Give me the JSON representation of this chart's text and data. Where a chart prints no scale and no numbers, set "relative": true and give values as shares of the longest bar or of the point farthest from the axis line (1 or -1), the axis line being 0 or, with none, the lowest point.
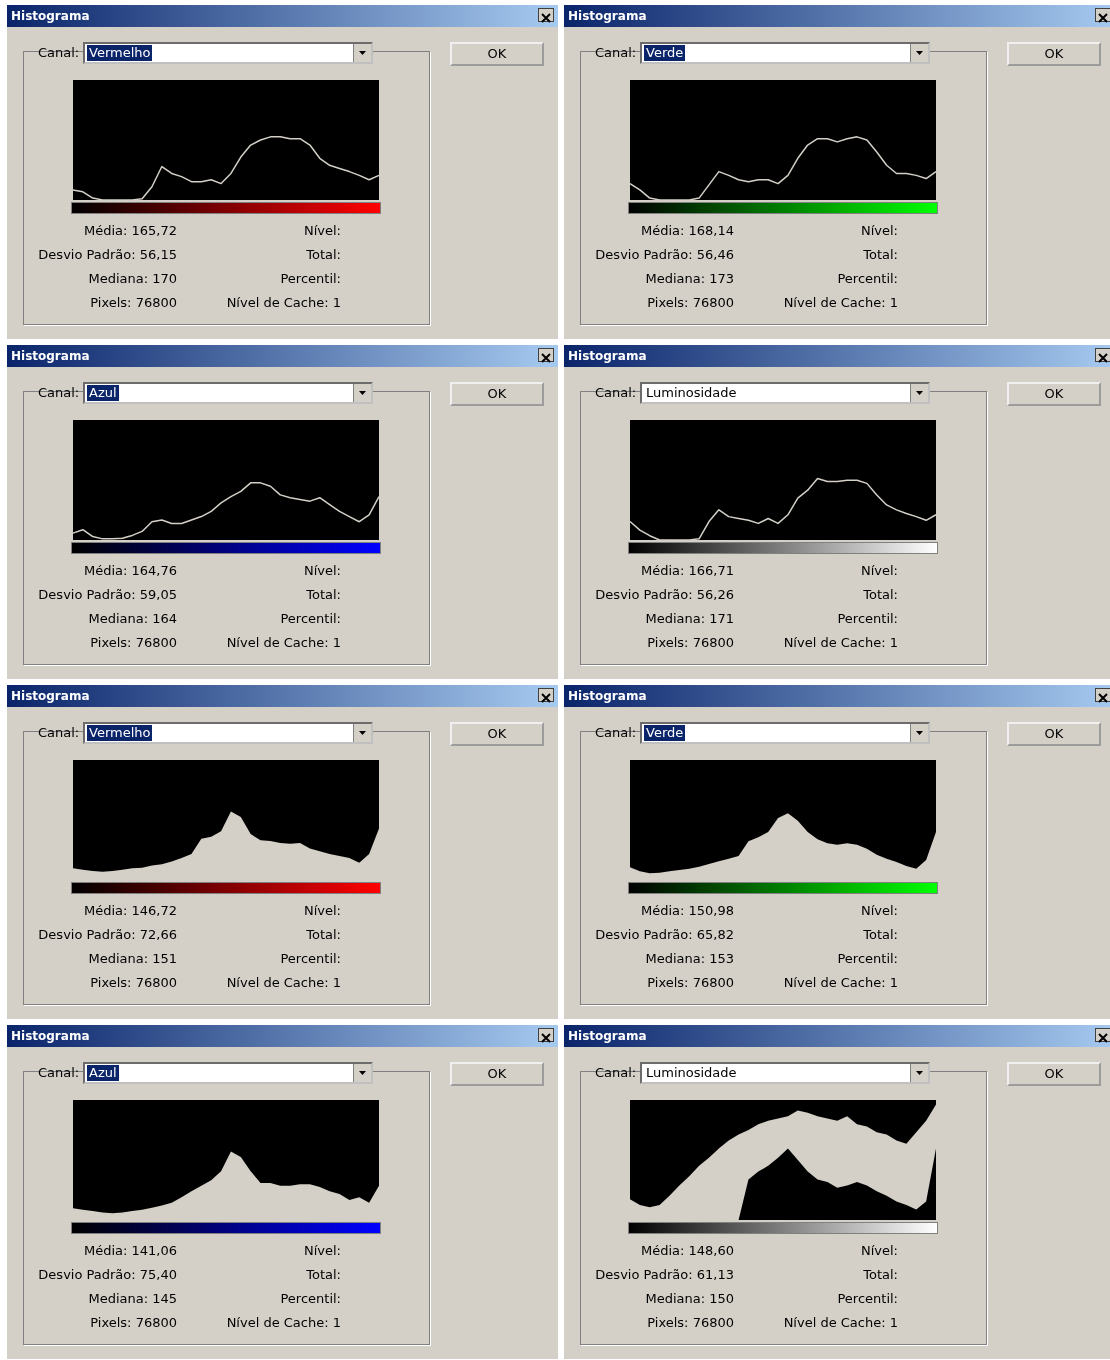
{
  "chart_data": [
    {
      "type": "line",
      "title": "Histograma",
      "relative": true,
      "tick_labels": false,
      "categories": [
        null,
        null,
        null,
        null,
        null,
        null,
        null,
        null,
        null,
        null,
        null,
        null,
        null,
        null,
        null,
        null,
        null,
        null,
        null,
        null,
        null,
        null,
        null,
        null,
        null,
        null,
        null,
        null,
        null,
        null,
        null,
        null
      ],
      "series": [
        {
          "color": "#d4d0c8",
          "values": [
            0.16,
            0.13,
            0.03,
            0,
            0,
            0,
            0,
            0.02,
            0.21,
            0.53,
            0.42,
            0.37,
            0.29,
            0.29,
            0.32,
            0.26,
            0.42,
            0.68,
            0.87,
            0.95,
            1,
            1,
            0.97,
            0.97,
            0.87,
            0.66,
            0.55,
            0.5,
            0.45,
            0.39,
            0.32,
            0.39
          ]
        }
      ],
      "annotations": [
        "Canal:",
        "Vermelho",
        "OK",
        "Média: 165,72",
        "Nível:",
        "Desvio Padrão: 56,15",
        "Total:",
        "Mediana: 170",
        "Percentil:",
        "Pixels: 76800",
        "Nível de Cache: 1"
      ]
    },
    {
      "type": "line",
      "title": "Histograma",
      "relative": true,
      "tick_labels": false,
      "categories": [
        null,
        null,
        null,
        null,
        null,
        null,
        null,
        null,
        null,
        null,
        null,
        null,
        null,
        null,
        null,
        null,
        null,
        null,
        null,
        null,
        null,
        null,
        null,
        null,
        null,
        null,
        null,
        null,
        null,
        null,
        null,
        null
      ],
      "series": [
        {
          "color": "#d4d0c8",
          "values": [
            0.26,
            0.16,
            0.03,
            0,
            0,
            0,
            0,
            0.03,
            0.24,
            0.45,
            0.39,
            0.32,
            0.29,
            0.32,
            0.32,
            0.26,
            0.39,
            0.66,
            0.87,
            0.97,
            0.97,
            0.92,
            0.97,
            1,
            0.95,
            0.76,
            0.55,
            0.42,
            0.42,
            0.39,
            0.34,
            0.45
          ]
        }
      ],
      "annotations": [
        "Canal:",
        "Verde",
        "OK",
        "Média: 168,14",
        "Nível:",
        "Desvio Padrão: 56,46",
        "Total:",
        "Mediana: 173",
        "Percentil:",
        "Pixels: 76800",
        "Nível de Cache: 1"
      ]
    },
    {
      "type": "line",
      "title": "Histograma",
      "relative": true,
      "tick_labels": false,
      "categories": [
        null,
        null,
        null,
        null,
        null,
        null,
        null,
        null,
        null,
        null,
        null,
        null,
        null,
        null,
        null,
        null,
        null,
        null,
        null,
        null,
        null,
        null,
        null,
        null,
        null,
        null,
        null,
        null,
        null,
        null,
        null,
        null
      ],
      "series": [
        {
          "color": "#d4d0c8",
          "values": [
            0.12,
            0.18,
            0.06,
            0.02,
            0.02,
            0.03,
            0.08,
            0.15,
            0.32,
            0.35,
            0.29,
            0.29,
            0.35,
            0.41,
            0.5,
            0.65,
            0.76,
            0.85,
            1,
            1,
            0.94,
            0.79,
            0.74,
            0.71,
            0.68,
            0.74,
            0.62,
            0.5,
            0.41,
            0.32,
            0.44,
            0.76
          ]
        }
      ],
      "annotations": [
        "Canal:",
        "Azul",
        "OK",
        "Média: 164,76",
        "Nível:",
        "Desvio Padrão: 59,05",
        "Total:",
        "Mediana: 164",
        "Percentil:",
        "Pixels: 76800",
        "Nível de Cache: 1"
      ]
    },
    {
      "type": "line",
      "title": "Histograma",
      "relative": true,
      "tick_labels": false,
      "categories": [
        null,
        null,
        null,
        null,
        null,
        null,
        null,
        null,
        null,
        null,
        null,
        null,
        null,
        null,
        null,
        null,
        null,
        null,
        null,
        null,
        null,
        null,
        null,
        null,
        null,
        null,
        null,
        null,
        null,
        null,
        null,
        null
      ],
      "series": [
        {
          "color": "#d4d0c8",
          "values": [
            0.3,
            0.16,
            0.07,
            0,
            0,
            0,
            0,
            0.02,
            0.3,
            0.49,
            0.38,
            0.35,
            0.32,
            0.27,
            0.35,
            0.27,
            0.41,
            0.68,
            0.81,
            1,
            0.95,
            0.95,
            0.97,
            0.97,
            0.92,
            0.73,
            0.57,
            0.49,
            0.43,
            0.38,
            0.32,
            0.41
          ]
        }
      ],
      "annotations": [
        "Canal:",
        "Luminosidade",
        "OK",
        "Média: 166,71",
        "Nível:",
        "Desvio Padrão: 56,26",
        "Total:",
        "Mediana: 171",
        "Percentil:",
        "Pixels: 76800",
        "Nível de Cache: 1"
      ]
    },
    {
      "type": "area",
      "title": "Histograma",
      "relative": true,
      "tick_labels": false,
      "categories": [
        null,
        null,
        null,
        null,
        null,
        null,
        null,
        null,
        null,
        null,
        null,
        null,
        null,
        null,
        null,
        null,
        null,
        null,
        null,
        null,
        null,
        null,
        null,
        null,
        null,
        null,
        null,
        null,
        null,
        null,
        null,
        null
      ],
      "series": [
        {
          "color": "#d4d0c8",
          "values": [
            0.17,
            0.15,
            0.13,
            0.12,
            0.13,
            0.15,
            0.17,
            0.18,
            0.21,
            0.23,
            0.27,
            0.32,
            0.38,
            0.6,
            0.63,
            0.71,
            1,
            0.92,
            0.67,
            0.58,
            0.57,
            0.54,
            0.53,
            0.54,
            0.46,
            0.42,
            0.38,
            0.35,
            0.32,
            0.25,
            0.38,
            0.75
          ]
        }
      ],
      "annotations": [
        "Canal:",
        "Vermelho",
        "OK",
        "Média: 146,72",
        "Nível:",
        "Desvio Padrão: 72,66",
        "Total:",
        "Mediana: 151",
        "Percentil:",
        "Pixels: 76800",
        "Nível de Cache: 1"
      ]
    },
    {
      "type": "area",
      "title": "Histograma",
      "relative": true,
      "tick_labels": false,
      "categories": [
        null,
        null,
        null,
        null,
        null,
        null,
        null,
        null,
        null,
        null,
        null,
        null,
        null,
        null,
        null,
        null,
        null,
        null,
        null,
        null,
        null,
        null,
        null,
        null,
        null,
        null,
        null,
        null,
        null,
        null,
        null,
        null
      ],
      "series": [
        {
          "color": "#d4d0c8",
          "values": [
            0.19,
            0.13,
            0.1,
            0.11,
            0.13,
            0.15,
            0.17,
            0.2,
            0.24,
            0.28,
            0.32,
            0.36,
            0.58,
            0.64,
            0.72,
            0.93,
            1,
            0.89,
            0.72,
            0.61,
            0.55,
            0.53,
            0.55,
            0.53,
            0.47,
            0.38,
            0.32,
            0.27,
            0.21,
            0.17,
            0.3,
            0.72
          ]
        }
      ],
      "annotations": [
        "Canal:",
        "Verde",
        "OK",
        "Média: 150,98",
        "Nível:",
        "Desvio Padrão: 65,82",
        "Total:",
        "Mediana: 153",
        "Percentil:",
        "Pixels: 76800",
        "Nível de Cache: 1"
      ]
    },
    {
      "type": "area",
      "title": "Histograma",
      "relative": true,
      "tick_labels": false,
      "categories": [
        null,
        null,
        null,
        null,
        null,
        null,
        null,
        null,
        null,
        null,
        null,
        null,
        null,
        null,
        null,
        null,
        null,
        null,
        null,
        null,
        null,
        null,
        null,
        null,
        null,
        null,
        null,
        null,
        null,
        null,
        null,
        null
      ],
      "series": [
        {
          "color": "#d4d0c8",
          "values": [
            0.17,
            0.15,
            0.13,
            0.11,
            0.1,
            0.11,
            0.13,
            0.15,
            0.18,
            0.21,
            0.25,
            0.33,
            0.42,
            0.5,
            0.58,
            0.71,
            1,
            0.92,
            0.71,
            0.54,
            0.54,
            0.5,
            0.5,
            0.52,
            0.52,
            0.48,
            0.42,
            0.38,
            0.29,
            0.33,
            0.25,
            0.5
          ]
        }
      ],
      "annotations": [
        "Canal:",
        "Azul",
        "OK",
        "Média: 141,06",
        "Nível:",
        "Desvio Padrão: 75,40",
        "Total:",
        "Mediana: 145",
        "Percentil:",
        "Pixels: 76800",
        "Nível de Cache: 1"
      ]
    },
    {
      "type": "area",
      "title": "Histograma",
      "relative": true,
      "tick_labels": false,
      "categories": [
        null,
        null,
        null,
        null,
        null,
        null,
        null,
        null,
        null,
        null,
        null,
        null,
        null,
        null,
        null,
        null,
        null,
        null,
        null,
        null,
        null,
        null,
        null,
        null,
        null,
        null,
        null,
        null,
        null,
        null,
        null,
        null
      ],
      "series": [
        {
          "color": "#d4d0c8",
          "values": [
            0.18,
            0.13,
            0.11,
            0.13,
            0.21,
            0.3,
            0.38,
            0.47,
            0.54,
            0.62,
            0.69,
            0.74,
            0.78,
            0.83,
            0.86,
            0.88,
            0.9,
            0.95,
            0.93,
            0.9,
            0.88,
            0.86,
            0.9,
            0.83,
            0.81,
            0.76,
            0.74,
            0.69,
            0.66,
            0.76,
            0.86,
            1
          ]
        },
        {
          "color": "#000000",
          "values": [
            0,
            0,
            0,
            0,
            0,
            0,
            0,
            0,
            0,
            0,
            0,
            0,
            0.35,
            0.42,
            0.47,
            0.54,
            0.62,
            0.52,
            0.42,
            0.35,
            0.33,
            0.28,
            0.3,
            0.33,
            0.3,
            0.25,
            0.21,
            0.16,
            0.13,
            0.09,
            0.16,
            0.62
          ]
        }
      ],
      "annotations": [
        "Canal:",
        "Luminosidade",
        "OK",
        "Média: 148,60",
        "Nível:",
        "Desvio Padrão: 61,13",
        "Total:",
        "Mediana: 150",
        "Percentil:",
        "Pixels: 76800",
        "Nível de Cache: 1"
      ]
    }
  ]
}
